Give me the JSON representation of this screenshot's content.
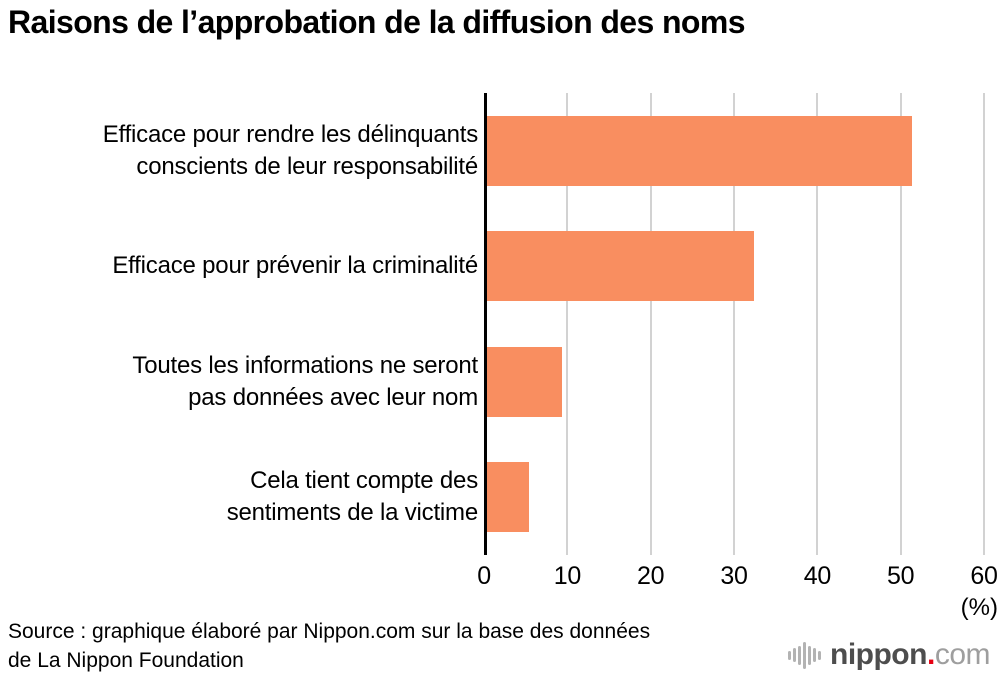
{
  "chart_data": {
    "type": "bar",
    "orientation": "horizontal",
    "title": "Raisons de l’approbation de la diffusion des noms",
    "categories": [
      "Efficace pour rendre les délinquants\nconscients de leur responsabilité",
      "Efficace pour prévenir la criminalité",
      "Toutes les informations ne seront\npas données avec leur nom",
      "Cela tient compte des\nsentiments de la victime"
    ],
    "values": [
      51,
      32,
      9,
      5
    ],
    "xlim": [
      0,
      60
    ],
    "xticks": [
      0,
      10,
      20,
      30,
      40,
      50,
      60
    ],
    "unit_label": "(%)",
    "grid": true,
    "legend": false,
    "bar_color": "#F98E60",
    "gridline_color": "#D2D2D2",
    "axis_color": "#000000"
  },
  "footer": {
    "source": "Source : graphique élaboré par Nippon.com sur la base des données\nde La Nippon Foundation",
    "logo": {
      "icon": "soundwave-bars-icon",
      "name": "nippon",
      "dot": ".",
      "tld": "com",
      "name_color": "#4D4D4D",
      "dot_color": "#E60012",
      "tld_color": "#9E9E9E",
      "icon_color": "#B3B3B3"
    }
  }
}
